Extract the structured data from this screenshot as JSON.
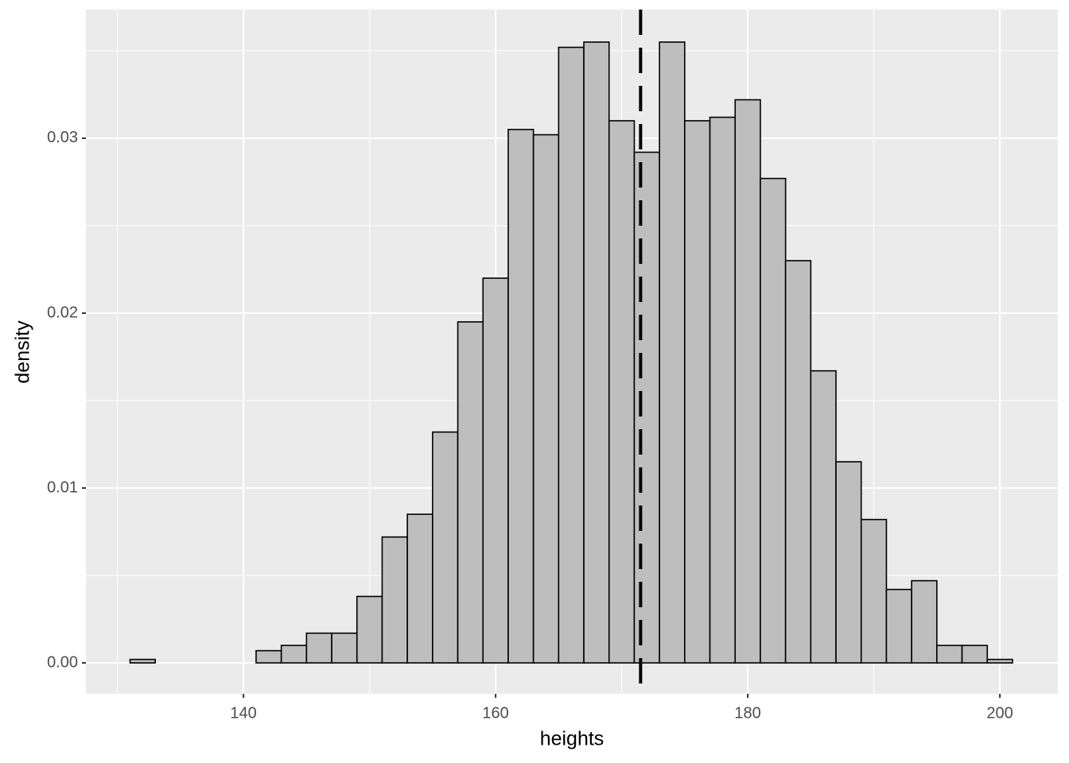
{
  "chart_data": {
    "type": "histogram",
    "x_label": "heights",
    "y_label": "density",
    "bins": [
      131,
      133,
      135,
      137,
      139,
      141,
      143,
      145,
      147,
      149,
      151,
      153,
      155,
      157,
      159,
      161,
      163,
      165,
      167,
      169,
      171,
      173,
      175,
      177,
      179,
      181,
      183,
      185,
      187,
      189,
      191,
      193,
      195,
      197,
      199,
      201
    ],
    "values": [
      0.0002,
      0,
      0,
      0,
      0,
      0.0007,
      0.001,
      0.0017,
      0.0017,
      0.0038,
      0.0072,
      0.0085,
      0.0132,
      0.0195,
      0.022,
      0.0305,
      0.0302,
      0.0352,
      0.0355,
      0.031,
      0.0292,
      0.0355,
      0.031,
      0.0312,
      0.0322,
      0.0277,
      0.023,
      0.0167,
      0.0115,
      0.0082,
      0.0042,
      0.0047,
      0.001,
      0.001,
      0.0002
    ],
    "color": "#bebebe",
    "edge_color": "#000000",
    "vline": 171.5,
    "vline_color": "#000000",
    "xlim": [
      127.5,
      204.6
    ],
    "ylim": [
      -0.00177,
      0.03736
    ],
    "xticks": [
      140,
      160,
      180,
      200
    ],
    "yticks": [
      {
        "value": 0,
        "label": "0.00"
      },
      0.01,
      0.02,
      0.03
    ],
    "grid": true
  }
}
